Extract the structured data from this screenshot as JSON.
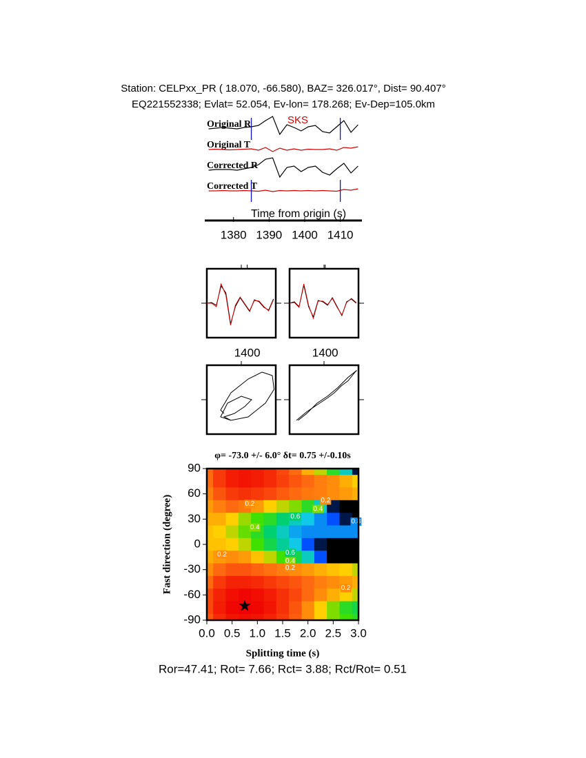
{
  "header": {
    "station_line": "Station: CELPxx_PR (  18.070,  -66.580), BAZ=  326.017°, Dist=   90.407°",
    "event_line": "EQ221552338; Evlat=  52.054, Ev-lon= 178.268; Ev-Dep=105.0km"
  },
  "chart_data": [
    {
      "type": "line",
      "stacked": true,
      "phase": "SKS",
      "xlabel": "Time from origin (s)",
      "xlim": [
        1372.5,
        1415.5
      ],
      "xticks": [
        1380,
        1390,
        1400,
        1410
      ],
      "window": [
        1385,
        1410
      ],
      "x": [
        1373,
        1375,
        1377,
        1379,
        1381,
        1383,
        1385,
        1387,
        1389,
        1391,
        1393,
        1395,
        1397,
        1399,
        1401,
        1403,
        1405,
        1407,
        1409,
        1411,
        1413,
        1415
      ],
      "series": [
        {
          "name": "Original R",
          "color": "#000000",
          "values": [
            0,
            0.1,
            0.2,
            0.1,
            0,
            0.2,
            0.3,
            0.5,
            1.2,
            1.8,
            -0.8,
            0.6,
            0.2,
            -0.3,
            0.3,
            0.5,
            -0.4,
            -0.6,
            0.3,
            1.2,
            -0.5,
            0.6
          ]
        },
        {
          "name": "Original T",
          "color": "#d00000",
          "values": [
            0,
            0.05,
            0,
            -0.05,
            0,
            0.05,
            0.1,
            -0.1,
            0.3,
            -0.3,
            0.2,
            -0.1,
            0.1,
            -0.1,
            0.05,
            0,
            0,
            0.1,
            -0.1,
            0.3,
            0.2,
            0.4
          ]
        },
        {
          "name": "Corrected R",
          "color": "#000000",
          "values": [
            0,
            0.1,
            0.1,
            0.1,
            0,
            0.2,
            0.4,
            0.8,
            1.6,
            1.8,
            -1.0,
            0.4,
            0.6,
            -0.2,
            0.4,
            0.6,
            -0.3,
            -0.7,
            0.2,
            1.0,
            -0.4,
            0.6
          ]
        },
        {
          "name": "Corrected T",
          "color": "#d00000",
          "values": [
            0,
            0,
            0.05,
            0,
            0,
            0.05,
            0,
            -0.05,
            0.1,
            -0.1,
            0.05,
            0,
            0.05,
            0,
            0.05,
            0,
            0.05,
            0,
            -0.05,
            0.2,
            0.1,
            0.3
          ]
        }
      ]
    },
    {
      "type": "line",
      "frame": true,
      "xlim": [
        1383,
        1412
      ],
      "xticks": [
        1400
      ],
      "x": [
        1383,
        1385,
        1387,
        1389,
        1391,
        1393,
        1395,
        1397,
        1399,
        1401,
        1403,
        1405,
        1407,
        1409,
        1411
      ],
      "series": [
        {
          "color": "#000000",
          "values": [
            0,
            0.1,
            -0.3,
            2.5,
            1.5,
            -3.0,
            -0.5,
            0.8,
            -0.2,
            -1.2,
            0.5,
            0.2,
            -0.6,
            -1.0,
            0.6
          ]
        },
        {
          "color": "#d00000",
          "values": [
            0,
            0.0,
            -0.5,
            2.8,
            1.2,
            -3.2,
            -0.3,
            0.9,
            -0.1,
            -1.1,
            0.4,
            0.3,
            -0.5,
            -1.1,
            0.5
          ]
        }
      ]
    },
    {
      "type": "line",
      "frame": true,
      "xlim": [
        1385,
        1414
      ],
      "xticks": [
        1400
      ],
      "x": [
        1385,
        1387,
        1389,
        1391,
        1393,
        1395,
        1397,
        1399,
        1401,
        1403,
        1405,
        1407,
        1409,
        1411,
        1413
      ],
      "series": [
        {
          "color": "#000000",
          "values": [
            0,
            0.2,
            -0.5,
            2.6,
            -0.5,
            -2.0,
            0.4,
            0.2,
            -0.3,
            0.8,
            -0.5,
            -1.8,
            0.2,
            0.6,
            0
          ]
        },
        {
          "color": "#d00000",
          "values": [
            0,
            0.1,
            -0.6,
            2.8,
            -0.3,
            -2.2,
            0.3,
            0.3,
            -0.2,
            0.7,
            -0.6,
            -1.7,
            0.1,
            0.7,
            0.1
          ]
        }
      ]
    },
    {
      "type": "line",
      "frame": true,
      "xlim": [
        -1,
        1
      ],
      "ylim": [
        -1,
        1
      ],
      "series": [
        {
          "color": "#000000",
          "x": [
            -0.5,
            -0.6,
            -0.3,
            0.2,
            0.6,
            0.9,
            0.95,
            0.7,
            0.2,
            -0.3,
            -0.6,
            -0.4,
            0,
            0.3,
            0.1,
            -0.2,
            -0.5,
            -0.3
          ],
          "values": [
            -0.4,
            -0.3,
            0.2,
            0.6,
            0.8,
            0.7,
            0.3,
            -0.1,
            -0.5,
            -0.6,
            -0.5,
            -0.1,
            0.1,
            0.0,
            -0.2,
            -0.4,
            -0.5,
            -0.6
          ]
        }
      ]
    },
    {
      "type": "line",
      "frame": true,
      "xlim": [
        -1,
        1
      ],
      "ylim": [
        -1,
        1
      ],
      "series": [
        {
          "color": "#000000",
          "x": [
            -0.8,
            -0.5,
            -0.2,
            0.1,
            0.3,
            0.5,
            0.7,
            0.9,
            0.95,
            0.7,
            0.4,
            0.1,
            -0.2,
            -0.5,
            -0.75
          ],
          "values": [
            -0.6,
            -0.35,
            -0.15,
            0.05,
            0.2,
            0.4,
            0.55,
            0.8,
            0.85,
            0.65,
            0.35,
            0.1,
            -0.1,
            -0.4,
            -0.6
          ]
        }
      ]
    },
    {
      "type": "contour",
      "title": "φ= -73.0 +/- 6.0° δt= 0.75 +/-0.10s",
      "xlabel": "Splitting time (s)",
      "ylabel": "Fast direction (degree)",
      "xlim": [
        0,
        3
      ],
      "ylim": [
        -90,
        90
      ],
      "xticks": [
        {
          "value": 0,
          "label": "0.0"
        },
        0.5,
        {
          "value": 1,
          "label": "1.0"
        },
        1.5,
        {
          "value": 2,
          "label": "2.0"
        },
        2.5,
        {
          "value": 3,
          "label": "3.0"
        }
      ],
      "yticks": [
        -90,
        -60,
        -30,
        0,
        30,
        60,
        90
      ],
      "colorscale": [
        [
          0,
          "#f00000"
        ],
        [
          0.15,
          "#ff6a10"
        ],
        [
          0.3,
          "#ffd000"
        ],
        [
          0.45,
          "#40e000"
        ],
        [
          0.6,
          "#00d070"
        ],
        [
          0.75,
          "#10c8e8"
        ],
        [
          0.85,
          "#0050ff"
        ],
        [
          0.92,
          "#000000"
        ]
      ],
      "x": [
        0,
        0.25,
        0.5,
        0.75,
        1,
        1.25,
        1.5,
        1.75,
        2,
        2.25,
        2.5,
        2.75,
        3
      ],
      "y": [
        90,
        75,
        60,
        45,
        30,
        15,
        0,
        -15,
        -30,
        -45,
        -60,
        -75,
        -90
      ],
      "z": [
        [
          0.15,
          0.08,
          0.04,
          0.03,
          0.04,
          0.06,
          0.1,
          0.15,
          0.25,
          0.35,
          0.5,
          0.7,
          0.9
        ],
        [
          0.15,
          0.08,
          0.04,
          0.03,
          0.04,
          0.06,
          0.09,
          0.12,
          0.15,
          0.18,
          0.2,
          0.25,
          0.3
        ],
        [
          0.18,
          0.12,
          0.08,
          0.07,
          0.08,
          0.1,
          0.13,
          0.15,
          0.17,
          0.18,
          0.2,
          0.22,
          0.25
        ],
        [
          0.22,
          0.18,
          0.15,
          0.17,
          0.22,
          0.3,
          0.35,
          0.4,
          0.5,
          0.7,
          0.9,
          0.95,
          0.95
        ],
        [
          0.25,
          0.25,
          0.3,
          0.38,
          0.45,
          0.5,
          0.6,
          0.7,
          0.75,
          0.8,
          0.85,
          0.9,
          0.95
        ],
        [
          0.28,
          0.3,
          0.35,
          0.42,
          0.5,
          0.6,
          0.7,
          0.78,
          0.8,
          0.8,
          0.8,
          0.8,
          0.8
        ],
        [
          0.28,
          0.28,
          0.3,
          0.35,
          0.45,
          0.55,
          0.65,
          0.75,
          0.85,
          0.9,
          0.95,
          0.95,
          0.95
        ],
        [
          0.25,
          0.22,
          0.2,
          0.22,
          0.28,
          0.35,
          0.45,
          0.55,
          0.7,
          0.85,
          0.95,
          0.95,
          0.95
        ],
        [
          0.2,
          0.15,
          0.12,
          0.12,
          0.14,
          0.16,
          0.18,
          0.2,
          0.22,
          0.25,
          0.28,
          0.3,
          0.35
        ],
        [
          0.15,
          0.08,
          0.05,
          0.05,
          0.06,
          0.08,
          0.1,
          0.12,
          0.15,
          0.18,
          0.2,
          0.22,
          0.25
        ],
        [
          0.1,
          0.05,
          0.02,
          0.01,
          0.02,
          0.04,
          0.07,
          0.1,
          0.15,
          0.2,
          0.25,
          0.3,
          0.35
        ],
        [
          0.1,
          0.04,
          0.01,
          0.0,
          0.01,
          0.03,
          0.07,
          0.12,
          0.2,
          0.3,
          0.4,
          0.5,
          0.55
        ],
        [
          0.12,
          0.06,
          0.03,
          0.02,
          0.03,
          0.05,
          0.08,
          0.13,
          0.2,
          0.3,
          0.4,
          0.45,
          0.5
        ]
      ],
      "contour_labels": [
        {
          "x": 0.85,
          "y": 48,
          "value": 0.2
        },
        {
          "x": 0.95,
          "y": 20,
          "value": 0.4
        },
        {
          "x": 1.75,
          "y": 33,
          "value": 0.6
        },
        {
          "x": 2.2,
          "y": 42,
          "value": 0.4
        },
        {
          "x": 2.35,
          "y": 52,
          "value": 0.2
        },
        {
          "x": 2.95,
          "y": 27,
          "value": 0.8
        },
        {
          "x": 1.65,
          "y": -10,
          "value": 0.6
        },
        {
          "x": 1.65,
          "y": -20,
          "value": 0.4
        },
        {
          "x": 1.65,
          "y": -28,
          "value": 0.2
        },
        {
          "x": 2.75,
          "y": -52,
          "value": 0.2
        },
        {
          "x": 0.3,
          "y": -12,
          "value": 0.2
        }
      ],
      "best": [
        0.75,
        -73
      ]
    }
  ],
  "footer": "Ror=47.41; Rot= 7.66; Rct= 3.88; Rct/Rot= 0.51"
}
